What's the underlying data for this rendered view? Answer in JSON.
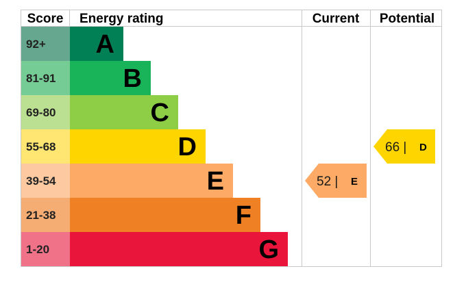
{
  "headers": {
    "score": "Score",
    "energy_rating": "Energy rating",
    "current": "Current",
    "potential": "Potential"
  },
  "chart_data": {
    "type": "bar",
    "bands": [
      {
        "score": "92+",
        "letter": "A",
        "color": "#008054",
        "score_bg": "#66a88f"
      },
      {
        "score": "81-91",
        "letter": "B",
        "color": "#19b459",
        "score_bg": "#75cc94"
      },
      {
        "score": "69-80",
        "letter": "C",
        "color": "#8dce46",
        "score_bg": "#bce092"
      },
      {
        "score": "55-68",
        "letter": "D",
        "color": "#ffd500",
        "score_bg": "#ffe571"
      },
      {
        "score": "39-54",
        "letter": "E",
        "color": "#fcaa65",
        "score_bg": "#fdc9a0"
      },
      {
        "score": "21-38",
        "letter": "F",
        "color": "#ef8023",
        "score_bg": "#f5ad73"
      },
      {
        "score": "1-20",
        "letter": "G",
        "color": "#e9153b",
        "score_bg": "#f07289"
      }
    ],
    "current": {
      "value": 52,
      "letter": "E",
      "label": "52 |",
      "color": "#fcaa65"
    },
    "potential": {
      "value": 66,
      "letter": "D",
      "label": "66 |",
      "color": "#ffd500"
    }
  }
}
